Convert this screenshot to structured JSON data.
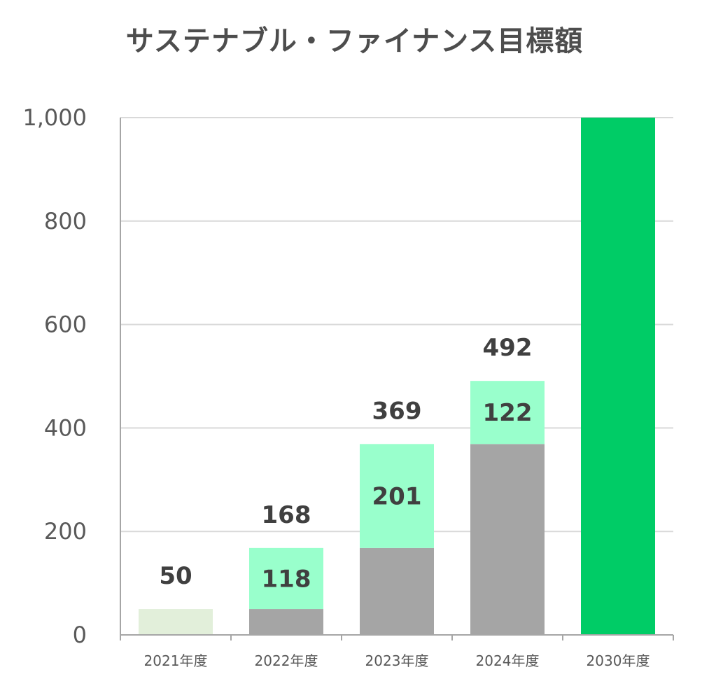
{
  "chart_data": {
    "type": "bar",
    "title": "サステナブル・ファイナンス目標額",
    "xlabel": "",
    "ylabel": "",
    "ylim": [
      0,
      1000
    ],
    "yticks": [
      "0",
      "200",
      "400",
      "600",
      "800",
      "1,000"
    ],
    "grid": true,
    "categories": [
      "2021年度",
      "2022年度",
      "2023年度",
      "2024年度",
      "2030年度"
    ],
    "series": [
      {
        "values": [
          50,
          50,
          168,
          369,
          0
        ]
      },
      {
        "values": [
          0,
          118,
          201,
          122,
          0
        ]
      },
      {
        "values": [
          0,
          0,
          0,
          0,
          1000
        ]
      }
    ],
    "increment_labels": [
      "",
      "118",
      "201",
      "122",
      ""
    ],
    "total_labels": [
      "50",
      "168",
      "369",
      "492",
      ""
    ],
    "colors": {
      "base_2021": "#e2efda",
      "base": "#a5a5a5",
      "increment": "#99ffcc",
      "target": "#00cc66",
      "grid": "#d9d9d9",
      "axis": "#a6a6a6"
    }
  }
}
